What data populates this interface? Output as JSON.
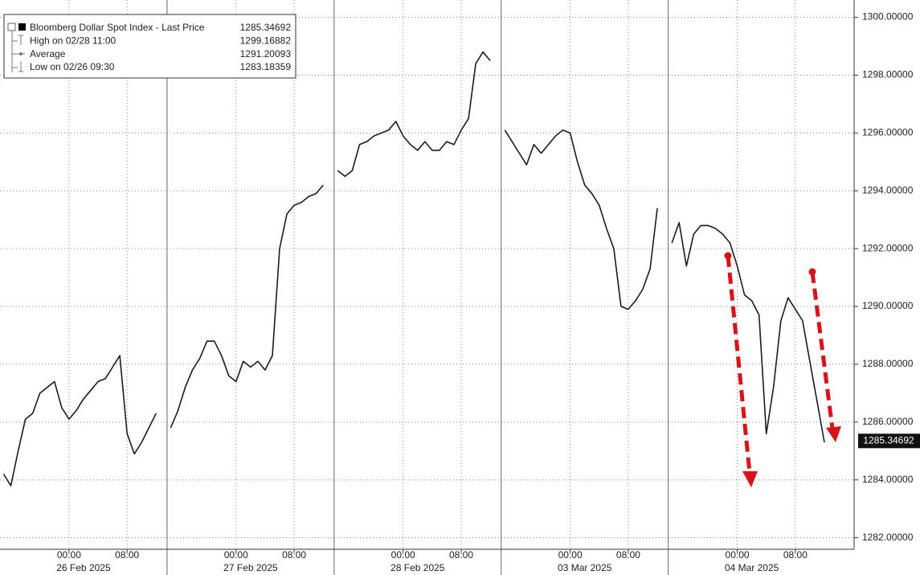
{
  "chart_data": {
    "type": "line",
    "legend_entries": [
      {
        "label": "Bloomberg Dollar Spot Index - Last Price",
        "value": 1285.34692
      },
      {
        "label": "High on 02/28 11:00",
        "value": 1299.16882
      },
      {
        "label": "Average",
        "value": 1291.20093
      },
      {
        "label": "Low on 02/26 09:30",
        "value": 1283.18359
      }
    ],
    "date_labels": [
      "26 Feb 2025",
      "27 Feb 2025",
      "28 Feb 2025",
      "03 Mar 2025",
      "04 Mar 2025"
    ],
    "categories": [
      null,
      null,
      null,
      null,
      null,
      null,
      null,
      null,
      null,
      "00:00",
      null,
      null,
      null,
      null,
      null,
      null,
      null,
      "08:00",
      null,
      null,
      null,
      null,
      null,
      null,
      null,
      null,
      null,
      null,
      null,
      null,
      null,
      null,
      "00:00",
      null,
      null,
      null,
      null,
      null,
      null,
      null,
      "08:00",
      null,
      null,
      null,
      null,
      null,
      null,
      null,
      null,
      null,
      null,
      null,
      null,
      null,
      null,
      "00:00",
      null,
      null,
      null,
      null,
      null,
      null,
      null,
      "08:00",
      null,
      null,
      null,
      null,
      null,
      null,
      null,
      null,
      null,
      null,
      null,
      null,
      null,
      null,
      "00:00",
      null,
      null,
      null,
      null,
      null,
      null,
      null,
      "08:00",
      null,
      null,
      null,
      null,
      null,
      null,
      null,
      null,
      null,
      null,
      null,
      null,
      null,
      null,
      "00:00",
      null,
      null,
      null,
      null,
      null,
      null,
      null,
      "08:00",
      null,
      null,
      null,
      null,
      null
    ],
    "series": [
      {
        "name": "Bloomberg Dollar Spot Index - Last Price",
        "color": "#1c1c1c",
        "values": [
          1284.2,
          1283.8,
          1285.0,
          1286.1,
          1286.3,
          1287.0,
          1287.2,
          1287.4,
          1286.5,
          1286.1,
          1286.4,
          1286.8,
          1287.1,
          1287.4,
          1287.5,
          1287.9,
          1288.3,
          1285.6,
          1284.9,
          1285.3,
          1285.8,
          1286.3,
          null,
          1285.8,
          1286.4,
          1287.2,
          1287.8,
          1288.2,
          1288.8,
          1288.8,
          1288.3,
          1287.6,
          1287.4,
          1288.1,
          1287.9,
          1288.1,
          1287.8,
          1288.3,
          1292.0,
          1293.2,
          1293.5,
          1293.6,
          1293.8,
          1293.9,
          1294.2,
          null,
          1294.7,
          1294.5,
          1294.7,
          1295.6,
          1295.7,
          1295.9,
          1296.0,
          1296.1,
          1296.4,
          1295.9,
          1295.6,
          1295.4,
          1295.7,
          1295.4,
          1295.4,
          1295.7,
          1295.6,
          1296.1,
          1296.5,
          1298.4,
          1298.8,
          1298.5,
          null,
          1296.1,
          1295.7,
          1295.3,
          1294.9,
          1295.6,
          1295.3,
          1295.6,
          1295.9,
          1296.1,
          1296.0,
          1295.0,
          1294.2,
          1293.9,
          1293.5,
          1292.7,
          1292.0,
          1290.0,
          1289.9,
          1290.2,
          1290.6,
          1291.3,
          1293.4,
          null,
          1292.2,
          1292.9,
          1291.4,
          1292.5,
          1292.8,
          1292.8,
          1292.7,
          1292.5,
          1292.2,
          1291.4,
          1290.4,
          1290.2,
          1289.7,
          1285.6,
          1287.2,
          1289.5,
          1290.3,
          1289.9,
          1289.5,
          1288.1,
          1286.7,
          1285.3,
          null
        ]
      }
    ],
    "ylim": [
      1281.6,
      1300.6
    ],
    "yticks": [
      {
        "value": 1282,
        "label": "1282.00000"
      },
      {
        "value": 1284,
        "label": "1284.00000"
      },
      {
        "value": 1286,
        "label": "1286.00000"
      },
      {
        "value": 1288,
        "label": "1288.00000"
      },
      {
        "value": 1290,
        "label": "1290.00000"
      },
      {
        "value": 1292,
        "label": "1292.00000"
      },
      {
        "value": 1294,
        "label": "1294.00000"
      },
      {
        "value": 1296,
        "label": "1296.00000"
      },
      {
        "value": 1298,
        "label": "1298.00000"
      },
      {
        "value": 1300,
        "label": "1300.00000"
      }
    ],
    "grid": true
  }
}
